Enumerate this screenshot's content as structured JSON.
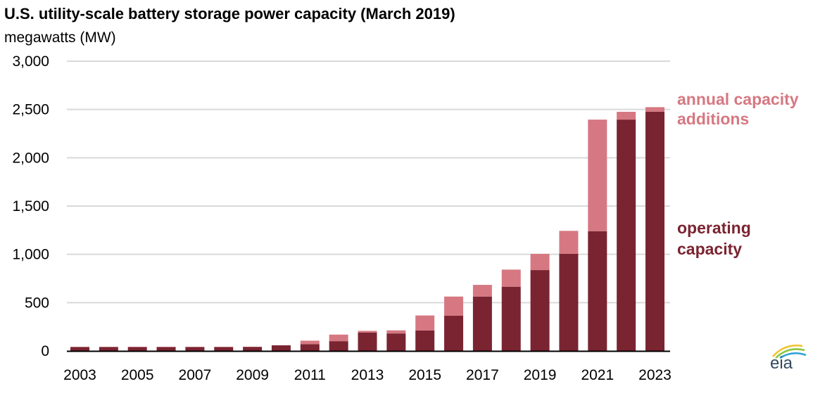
{
  "chart_data": {
    "type": "bar",
    "stacked": true,
    "title": "U.S. utility-scale battery storage power capacity (March 2019)",
    "subtitle": "megawatts (MW)",
    "xlabel": "",
    "ylabel": "",
    "ylim": [
      0,
      3000
    ],
    "yticks": [
      "0",
      "500",
      "1,000",
      "1,500",
      "2,000",
      "2,500",
      "3,000"
    ],
    "ytick_values": [
      0,
      500,
      1000,
      1500,
      2000,
      2500,
      3000
    ],
    "grid": true,
    "categories": [
      "2003",
      "2004",
      "2005",
      "2006",
      "2007",
      "2008",
      "2009",
      "2010",
      "2011",
      "2012",
      "2013",
      "2014",
      "2015",
      "2016",
      "2017",
      "2018",
      "2019",
      "2020",
      "2021",
      "2022",
      "2023"
    ],
    "xtick_labels": [
      "2003",
      "2005",
      "2007",
      "2009",
      "2011",
      "2013",
      "2015",
      "2017",
      "2019",
      "2021",
      "2023"
    ],
    "series": [
      {
        "name": "operating capacity",
        "color": "#7a2431",
        "values": [
          40,
          40,
          40,
          40,
          40,
          40,
          42,
          58,
          70,
          101,
          191,
          181,
          212,
          364,
          563,
          665,
          837,
          1005,
          1240,
          2395,
          2476
        ]
      },
      {
        "name": "annual capacity additions",
        "color": "#d67882",
        "values": [
          2,
          2,
          2,
          2,
          2,
          2,
          1,
          0,
          36,
          68,
          17,
          32,
          155,
          199,
          121,
          177,
          168,
          238,
          1155,
          81,
          48
        ]
      }
    ],
    "legend": {
      "placement": "right",
      "entries": [
        "annual capacity additions",
        "operating capacity"
      ]
    }
  },
  "logo": {
    "text": "eia"
  }
}
